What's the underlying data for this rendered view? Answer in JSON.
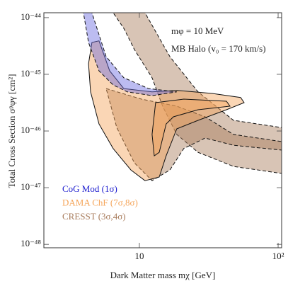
{
  "chart_data": {
    "type": "region",
    "xlabel": "Dark Matter mass   mχ   [GeV]",
    "ylabel": "Total Cross Section  σᵖφγ [cm²]",
    "annotations": [
      "mφ = 10 MeV",
      "MB Halo (v₀ = 170 km/s)"
    ],
    "xlog": true,
    "ylog": true,
    "xlim": [
      2.05,
      106
    ],
    "ylim": [
      8.7e-49,
      1.22e-44
    ],
    "xticks": [
      10,
      {
        "value": 100,
        "label": "10²"
      }
    ],
    "yticks": [
      {
        "value": 1e-48,
        "label": "10⁻⁴⁸"
      },
      {
        "value": 1e-47,
        "label": "10⁻⁴⁷"
      },
      {
        "value": 1e-46,
        "label": "10⁻⁴⁶"
      },
      {
        "value": 1e-45,
        "label": "10⁻⁴⁵"
      },
      {
        "value": 1e-44,
        "label": "10⁻⁴⁴"
      }
    ],
    "series": [
      {
        "name": "CRESST  (3σ,4σ)",
        "color": "#a87c5c",
        "dashed": true,
        "regions": [
          {
            "x": [
              6.47,
              10.98,
              16.6,
              26.5,
              47.7,
              106,
              106,
              47.7,
              26.5,
              18.6,
              14.7,
              12.35,
              9.21,
              7.72
            ],
            "y": [
              1.22e-44,
              1.22e-44,
              2.05e-45,
              4.9e-46,
              1.54e-46,
              1.15e-46,
              1.78e-47,
              2.37e-47,
              4.2e-47,
              8.7e-47,
              2.74e-46,
              8.7e-46,
              2.74e-45,
              6.5e-45
            ]
          },
          {
            "x": [
              5.76,
              10.35,
              18.6,
              29.8,
              47.7,
              106,
              106,
              47.7,
              29.8,
              20.9,
              16.6,
              12.35,
              9.21,
              6.87
            ],
            "y": [
              5.6e-46,
              3.65e-46,
              2.74e-46,
              1.78e-46,
              8.7e-47,
              6.5e-47,
              4.6e-47,
              5.6e-47,
              7.5e-47,
              4.9e-47,
              2.05e-47,
              1.33e-47,
              2.74e-47,
              1.15e-46
            ]
          }
        ]
      },
      {
        "name": "DAMA ChF (7σ,8σ)",
        "color": "#f5a55a",
        "dashed": false,
        "regions": [
          {
            "x": [
              4.55,
              5.12,
              6.11,
              7.72,
              12.35,
              18.6,
              33.5,
              53.7,
              56.9,
              42.4,
              26.5,
              18.6,
              15.6,
              13.9,
              10.98,
              8.69,
              6.47,
              5.12,
              4.45,
              4.3
            ],
            "y": [
              3.65e-45,
              3.9e-45,
              1.15e-45,
              5.6e-46,
              4.9e-46,
              5.2e-46,
              4.6e-46,
              3.9e-46,
              3.16e-46,
              2.37e-46,
              1.54e-46,
              1.09e-46,
              3.65e-47,
              1.54e-47,
              1.33e-47,
              2.05e-47,
              4.9e-47,
              1.33e-46,
              4.9e-46,
              1.54e-45
            ]
          },
          {
            "x": [
              13.1,
              20.9,
              42.4,
              45,
              26.5,
              17.6,
              15.6,
              13.9,
              12.8,
              12.35
            ],
            "y": [
              3.16e-46,
              3.65e-46,
              3.35e-46,
              2.74e-46,
              2.37e-46,
              1.78e-46,
              1.33e-46,
              4.2e-47,
              3.65e-47,
              8.7e-47
            ]
          }
        ]
      },
      {
        "name": "CoG Mod  (1σ)",
        "color": "#6a6ae0",
        "dashed": true,
        "regions": [
          {
            "x": [
              3.95,
              4.55,
              5.76,
              7.72,
              11.65,
              18.6,
              12.35,
              8.19,
              6.47,
              5.12,
              4.3
            ],
            "y": [
              1.22e-44,
              1.22e-44,
              2.05e-45,
              8.7e-46,
              5.6e-46,
              4.9e-46,
              4.2e-46,
              4.9e-46,
              6.5e-46,
              1.15e-45,
              3.65e-45
            ]
          }
        ]
      }
    ]
  }
}
